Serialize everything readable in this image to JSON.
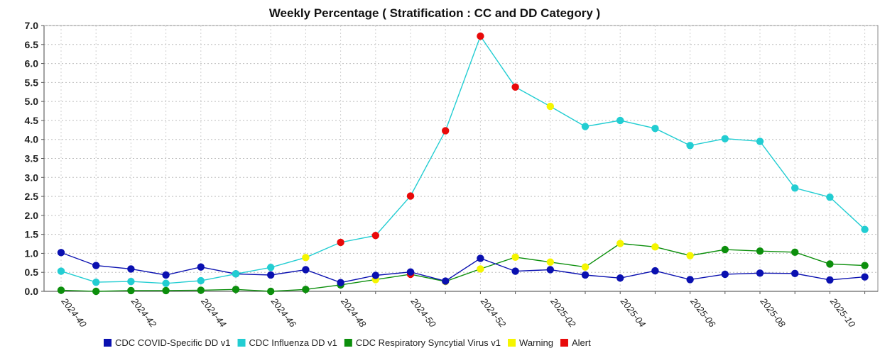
{
  "chart_data": {
    "type": "line",
    "title": "Weekly Percentage ( Stratification : CC and DD Category )",
    "x": [
      "2024-40",
      "2024-41",
      "2024-42",
      "2024-43",
      "2024-44",
      "2024-45",
      "2024-46",
      "2024-47",
      "2024-48",
      "2024-49",
      "2024-50",
      "2024-51",
      "2024-52",
      "2025-01",
      "2025-02",
      "2025-03",
      "2025-04",
      "2025-05",
      "2025-06",
      "2025-07",
      "2025-08",
      "2025-09",
      "2025-10",
      "2025-11"
    ],
    "x_tick_labels": [
      "2024-40",
      "2024-42",
      "2024-44",
      "2024-46",
      "2024-48",
      "2024-50",
      "2024-52",
      "2025-02",
      "2025-04",
      "2025-06",
      "2025-08",
      "2025-10"
    ],
    "ylim": [
      0,
      7.0
    ],
    "y_ticks": [
      "0.0",
      "0.5",
      "1.0",
      "1.5",
      "2.0",
      "2.5",
      "3.0",
      "3.5",
      "4.0",
      "4.5",
      "5.0",
      "5.5",
      "6.0",
      "6.5",
      "7.0"
    ],
    "grid": true,
    "legend_position": "bottom",
    "series": [
      {
        "name": "CDC COVID-Specific DD v1",
        "color": "#0a10b0",
        "values": [
          1.02,
          0.68,
          0.59,
          0.43,
          0.64,
          0.46,
          0.43,
          0.57,
          0.23,
          0.42,
          0.51,
          0.27,
          0.87,
          0.53,
          0.57,
          0.43,
          0.35,
          0.54,
          0.31,
          0.45,
          0.48,
          0.47,
          0.3,
          0.38
        ],
        "flags": [
          "",
          "",
          "",
          "",
          "",
          "",
          "",
          "",
          "",
          "",
          "",
          "",
          "",
          "",
          "",
          "",
          "",
          "",
          "",
          "",
          "",
          "",
          "",
          ""
        ]
      },
      {
        "name": "CDC Influenza DD v1",
        "color": "#22cdd2",
        "values": [
          0.53,
          0.24,
          0.26,
          0.21,
          0.28,
          0.46,
          0.63,
          0.89,
          1.29,
          1.47,
          2.51,
          4.23,
          6.72,
          5.38,
          4.87,
          4.34,
          4.5,
          4.29,
          3.84,
          4.02,
          3.95,
          2.72,
          2.48,
          1.63
        ],
        "flags": [
          "",
          "",
          "",
          "",
          "",
          "",
          "",
          "warning",
          "alert",
          "alert",
          "alert",
          "alert",
          "alert",
          "alert",
          "warning",
          "",
          "",
          "",
          "",
          "",
          "",
          "",
          "",
          ""
        ]
      },
      {
        "name": "CDC Respiratory Syncytial Virus v1",
        "color": "#0c8f0c",
        "values": [
          0.03,
          0.0,
          0.02,
          0.02,
          0.03,
          0.05,
          0.0,
          0.05,
          0.17,
          0.31,
          0.45,
          0.26,
          0.59,
          0.9,
          0.77,
          0.64,
          1.26,
          1.17,
          0.94,
          1.1,
          1.06,
          1.03,
          0.72,
          0.68
        ],
        "flags": [
          "",
          "",
          "",
          "",
          "",
          "",
          "",
          "",
          "",
          "warning",
          "alert",
          "warning",
          "warning",
          "warning",
          "warning",
          "warning",
          "warning",
          "warning",
          "warning",
          "",
          "",
          "",
          "",
          ""
        ]
      }
    ],
    "legend": [
      {
        "label": "CDC COVID-Specific DD v1",
        "color": "#0a10b0"
      },
      {
        "label": "CDC Influenza DD v1",
        "color": "#22cdd2"
      },
      {
        "label": "CDC Respiratory Syncytial Virus v1",
        "color": "#0c8f0c"
      },
      {
        "label": "Warning",
        "color": "#f5f500"
      },
      {
        "label": "Alert",
        "color": "#e80a0a"
      }
    ],
    "flag_colors": {
      "warning": "#f5f500",
      "alert": "#e80a0a"
    }
  }
}
